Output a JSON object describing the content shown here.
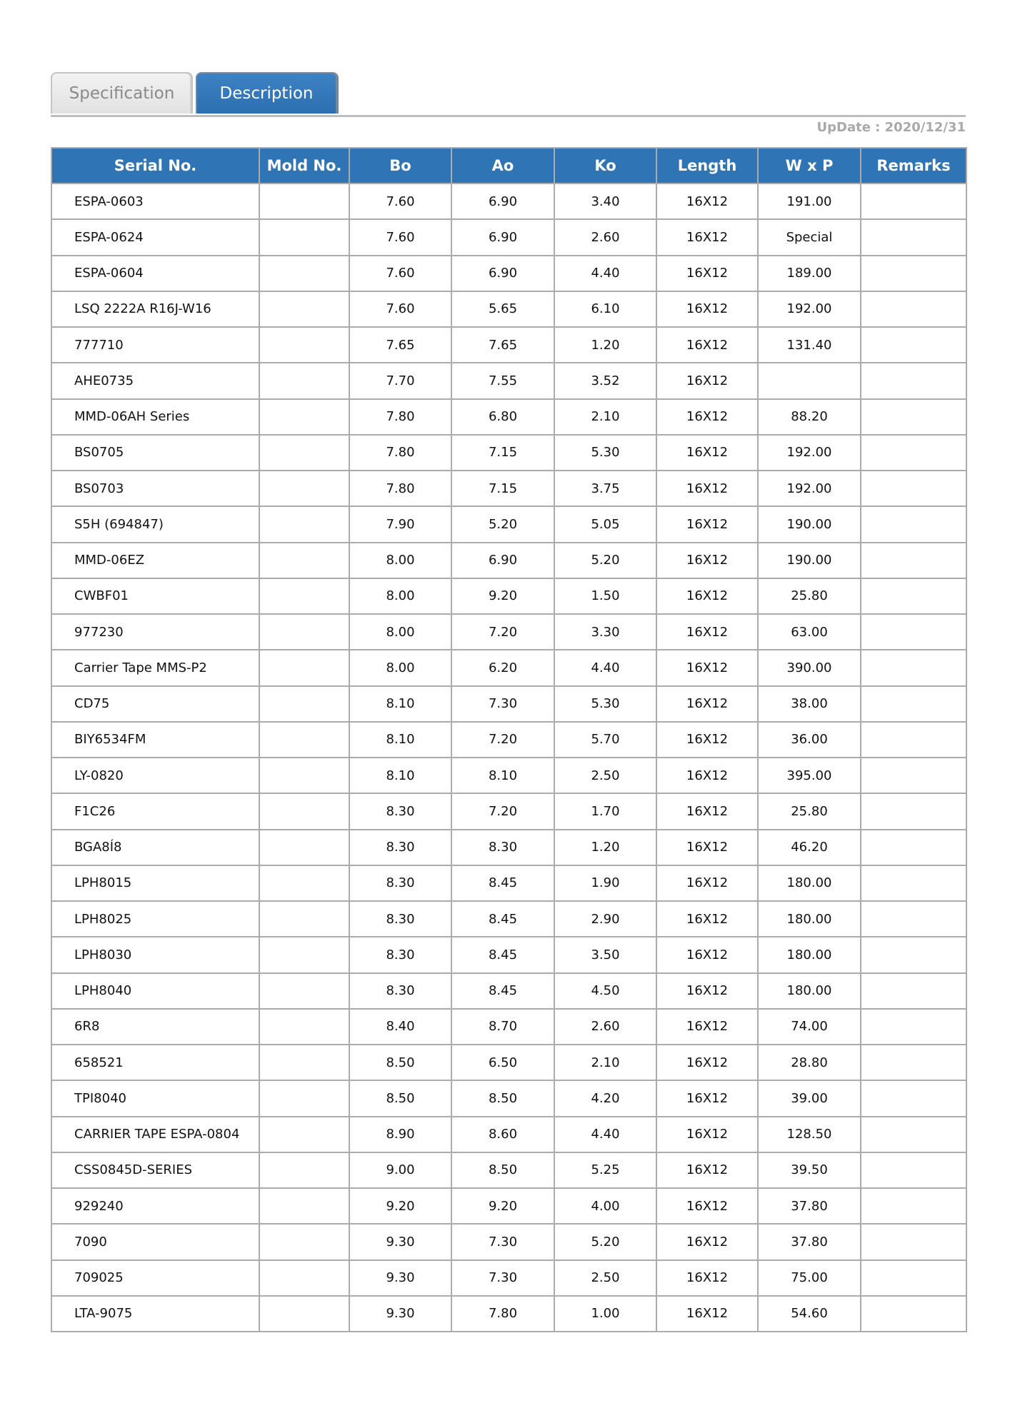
{
  "tabs": [
    {
      "label": "Specification",
      "active": false
    },
    {
      "label": "Description",
      "active": true
    }
  ],
  "update_text": "UpDate : 2020/12/31",
  "colors": {
    "header_bg": "#2f74b5",
    "active_tab": "#2f74b5",
    "border": "#ababab"
  },
  "table": {
    "headers": [
      "Serial No.",
      "Mold No.",
      "Bo",
      "Ao",
      "Ko",
      "Length",
      "W x P",
      "Remarks"
    ],
    "rows": [
      [
        "ESPA-0603",
        "",
        "7.60",
        "6.90",
        "3.40",
        "16X12",
        "191.00",
        ""
      ],
      [
        "ESPA-0624",
        "",
        "7.60",
        "6.90",
        "2.60",
        "16X12",
        "Special",
        ""
      ],
      [
        "ESPA-0604",
        "",
        "7.60",
        "6.90",
        "4.40",
        "16X12",
        "189.00",
        ""
      ],
      [
        "LSQ 2222A R16J-W16",
        "",
        "7.60",
        "5.65",
        "6.10",
        "16X12",
        "192.00",
        ""
      ],
      [
        "777710",
        "",
        "7.65",
        "7.65",
        "1.20",
        "16X12",
        "131.40",
        ""
      ],
      [
        "AHE0735",
        "",
        "7.70",
        "7.55",
        "3.52",
        "16X12",
        "",
        ""
      ],
      [
        "MMD-06AH Series",
        "",
        "7.80",
        "6.80",
        "2.10",
        "16X12",
        "88.20",
        ""
      ],
      [
        "BS0705",
        "",
        "7.80",
        "7.15",
        "5.30",
        "16X12",
        "192.00",
        ""
      ],
      [
        "BS0703",
        "",
        "7.80",
        "7.15",
        "3.75",
        "16X12",
        "192.00",
        ""
      ],
      [
        "S5H (694847)",
        "",
        "7.90",
        "5.20",
        "5.05",
        "16X12",
        "190.00",
        ""
      ],
      [
        "MMD-06EZ",
        "",
        "8.00",
        "6.90",
        "5.20",
        "16X12",
        "190.00",
        ""
      ],
      [
        "CWBF01",
        "",
        "8.00",
        "9.20",
        "1.50",
        "16X12",
        "25.80",
        ""
      ],
      [
        "977230",
        "",
        "8.00",
        "7.20",
        "3.30",
        "16X12",
        "63.00",
        ""
      ],
      [
        "Carrier Tape MMS-P2",
        "",
        "8.00",
        "6.20",
        "4.40",
        "16X12",
        "390.00",
        ""
      ],
      [
        "CD75",
        "",
        "8.10",
        "7.30",
        "5.30",
        "16X12",
        "38.00",
        ""
      ],
      [
        "BIY6534FM",
        "",
        "8.10",
        "7.20",
        "5.70",
        "16X12",
        "36.00",
        ""
      ],
      [
        "LY-0820",
        "",
        "8.10",
        "8.10",
        "2.50",
        "16X12",
        "395.00",
        ""
      ],
      [
        "F1C26",
        "",
        "8.30",
        "7.20",
        "1.70",
        "16X12",
        "25.80",
        ""
      ],
      [
        "BGA8Í8",
        "",
        "8.30",
        "8.30",
        "1.20",
        "16X12",
        "46.20",
        ""
      ],
      [
        "LPH8015",
        "",
        "8.30",
        "8.45",
        "1.90",
        "16X12",
        "180.00",
        ""
      ],
      [
        "LPH8025",
        "",
        "8.30",
        "8.45",
        "2.90",
        "16X12",
        "180.00",
        ""
      ],
      [
        "LPH8030",
        "",
        "8.30",
        "8.45",
        "3.50",
        "16X12",
        "180.00",
        ""
      ],
      [
        "LPH8040",
        "",
        "8.30",
        "8.45",
        "4.50",
        "16X12",
        "180.00",
        ""
      ],
      [
        "6R8",
        "",
        "8.40",
        "8.70",
        "2.60",
        "16X12",
        "74.00",
        ""
      ],
      [
        "658521",
        "",
        "8.50",
        "6.50",
        "2.10",
        "16X12",
        "28.80",
        ""
      ],
      [
        "TPI8040",
        "",
        "8.50",
        "8.50",
        "4.20",
        "16X12",
        "39.00",
        ""
      ],
      [
        "CARRIER TAPE ESPA-0804",
        "",
        "8.90",
        "8.60",
        "4.40",
        "16X12",
        "128.50",
        ""
      ],
      [
        "CSS0845D-SERIES",
        "",
        "9.00",
        "8.50",
        "5.25",
        "16X12",
        "39.50",
        ""
      ],
      [
        "929240",
        "",
        "9.20",
        "9.20",
        "4.00",
        "16X12",
        "37.80",
        ""
      ],
      [
        "7090",
        "",
        "9.30",
        "7.30",
        "5.20",
        "16X12",
        "37.80",
        ""
      ],
      [
        "709025",
        "",
        "9.30",
        "7.30",
        "2.50",
        "16X12",
        "75.00",
        ""
      ],
      [
        "LTA-9075",
        "",
        "9.30",
        "7.80",
        "1.00",
        "16X12",
        "54.60",
        ""
      ]
    ]
  }
}
